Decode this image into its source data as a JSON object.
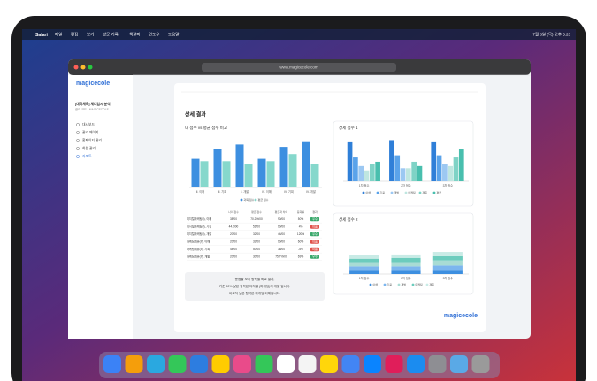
{
  "menu_bar": {
    "app": "Safari",
    "items": [
      "파일",
      "편집",
      "보기",
      "방문 기록",
      "책갈피",
      "윈도우",
      "도움말"
    ],
    "clock": "7월 8일 (목) 오후 5:23"
  },
  "browser": {
    "url": "www.magicecole.com"
  },
  "sidebar": {
    "logo": "magicecole",
    "title": "[대학체육] 체대입시 분석",
    "code": "관리 코드 : MAGICECOLE",
    "menu": [
      "대시보드",
      "관리 페이지",
      "홈페이지 관리",
      "회원 관리",
      "리포트"
    ]
  },
  "content": {
    "title": "상세 결과",
    "footer_logo": "magicecole",
    "note": [
      "총점을 보시 항목별 비교 결과,",
      "기준 90% 낮은 항목은 디지털 (마케팅)의 개발 입니다.",
      "비교적 높은 항목은 마케팅 이해입니다."
    ],
    "table": {
      "header": [
        "나의 점수",
        "평균 점수",
        "평균과 차이",
        "등락률",
        "결과"
      ],
      "rows": [
        [
          "디지털마케팅(I), 이해",
          "38/00",
          "70.2%/00",
          "90/00",
          "50%",
          "우수"
        ],
        [
          "디지털마케팅(I), 기획",
          "44.2/00",
          "51/00",
          "90/00",
          "4%",
          "미흡"
        ],
        [
          "디지털마케팅(I), 개발",
          "20/00",
          "32/00",
          "44/00",
          "120%",
          "우수"
        ],
        [
          "마케팅제휴(II), 이해",
          "20/00",
          "32/00",
          "90/00",
          "60%",
          "미흡"
        ],
        [
          "마케팅제휴(II), 기획",
          "48/00",
          "50/00",
          "36/00",
          "-5%",
          "미흡"
        ],
        [
          "마케팅제휴(II), 개발",
          "20/00",
          "30/00",
          "75.7%/00",
          "69%",
          "우수"
        ]
      ],
      "badge_colors": [
        "#3aa86b",
        "#e0524b",
        "#3aa86b",
        "#e0524b",
        "#e0524b",
        "#3aa86b"
      ]
    }
  },
  "charts": [
    {
      "type": "bar",
      "title": "내 점수 vs 평균 점수 비교",
      "ylim": [
        0,
        100
      ],
      "categories": [
        "Ⅱ. 이해",
        "Ⅱ. 기획",
        "Ⅱ. 개발",
        "Ⅳ. 이해",
        "Ⅳ. 기획",
        "Ⅳ. 개발"
      ],
      "series": [
        {
          "name": "과목 점수",
          "color": "#3d8fe0",
          "values": [
            60,
            80,
            90,
            60,
            85,
            95
          ]
        },
        {
          "name": "평균 점수",
          "color": "#86d8cc",
          "values": [
            55,
            55,
            50,
            55,
            70,
            50
          ]
        }
      ]
    },
    {
      "type": "bar",
      "title": "상세 점수 1",
      "ylim": [
        0,
        100
      ],
      "categories": [
        "1차 점수",
        "2차 점수",
        "3차 점수"
      ],
      "series": [
        {
          "name": "이해",
          "color": "#2f7fd8",
          "values": [
            90,
            95,
            90
          ]
        },
        {
          "name": "기획",
          "color": "#5aa3ea",
          "values": [
            55,
            60,
            60
          ]
        },
        {
          "name": "개발",
          "color": "#9cc8f2",
          "values": [
            35,
            30,
            40
          ]
        },
        {
          "name": "마케팅",
          "color": "#bfe6e0",
          "values": [
            25,
            30,
            35
          ]
        },
        {
          "name": "제휴",
          "color": "#7fd3c6",
          "values": [
            40,
            45,
            55
          ]
        },
        {
          "name": "평균",
          "color": "#49bfae",
          "values": [
            45,
            35,
            75
          ]
        }
      ]
    },
    {
      "type": "stacked_bar",
      "title": "상세 점수 2",
      "ylim": [
        0,
        100
      ],
      "categories": [
        "1차 점수",
        "2차 점수",
        "3차 점수"
      ],
      "series": [
        {
          "name": "이해",
          "color": "#3d8fe0",
          "values": [
            10,
            10,
            10
          ]
        },
        {
          "name": "기획",
          "color": "#7cb6ee",
          "values": [
            8,
            8,
            10
          ]
        },
        {
          "name": "개발",
          "color": "#a8dcd4",
          "values": [
            10,
            10,
            12
          ]
        },
        {
          "name": "마케팅",
          "color": "#6cccbd",
          "values": [
            8,
            10,
            10
          ]
        },
        {
          "name": "제휴",
          "color": "#c9ebe6",
          "values": [
            8,
            8,
            10
          ]
        }
      ]
    }
  ]
}
